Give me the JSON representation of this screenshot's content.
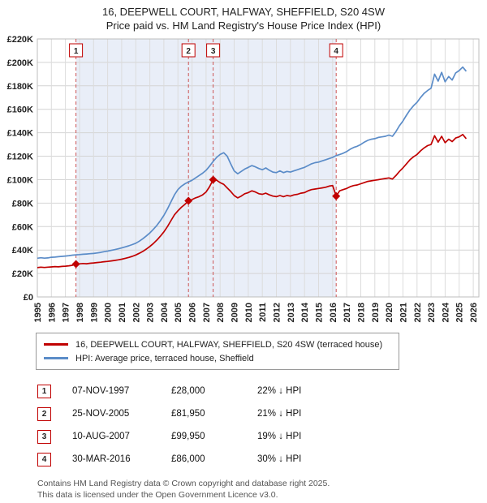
{
  "header": {
    "title": "16, DEEPWELL COURT, HALFWAY, SHEFFIELD, S20 4SW",
    "subtitle": "Price paid vs. HM Land Registry's House Price Index (HPI)"
  },
  "chart_data": {
    "type": "line",
    "title": "16, DEEPWELL COURT, HALFWAY, SHEFFIELD, S20 4SW",
    "subtitle": "Price paid vs. HM Land Registry's House Price Index (HPI)",
    "xlabel": "",
    "ylabel": "",
    "ylim": [
      0,
      220000
    ],
    "y_tick_step": 20000,
    "y_tick_labels": [
      "£0",
      "£20K",
      "£40K",
      "£60K",
      "£80K",
      "£100K",
      "£120K",
      "£140K",
      "£160K",
      "£180K",
      "£200K",
      "£220K"
    ],
    "x_ticks": [
      1995,
      1996,
      1997,
      1998,
      1999,
      2000,
      2001,
      2002,
      2003,
      2004,
      2005,
      2006,
      2007,
      2008,
      2009,
      2010,
      2011,
      2012,
      2013,
      2014,
      2015,
      2016,
      2017,
      2018,
      2019,
      2020,
      2021,
      2022,
      2023,
      2024,
      2025,
      2026
    ],
    "x_start": 1995,
    "x_step": 0.25,
    "grid": true,
    "legend_position": "bottom",
    "y_unit": "GBP_thousands",
    "ownership_shading": {
      "from": 1997.75,
      "to": 2016.25,
      "color": "#e9eef8"
    },
    "series": [
      {
        "name": "16, DEEPWELL COURT, HALFWAY, SHEFFIELD, S20 4SW (terraced house)",
        "color": "#c00000",
        "values": [
          25,
          25.4,
          25.1,
          25.4,
          25.6,
          25.9,
          25.7,
          26,
          26.2,
          26.6,
          27,
          28,
          28.2,
          28.5,
          28.3,
          28.7,
          29,
          29.3,
          29.6,
          30,
          30.3,
          30.7,
          31.1,
          31.6,
          32.2,
          32.9,
          33.7,
          34.6,
          35.8,
          37.2,
          38.8,
          40.8,
          43,
          45.5,
          48.5,
          51.8,
          55.5,
          60,
          65,
          70,
          73.5,
          76.5,
          79,
          81.95,
          83,
          84.5,
          85.5,
          87,
          89.5,
          94,
          99.95,
          99.5,
          97.5,
          96,
          93,
          90,
          86.5,
          84.5,
          86,
          88,
          89,
          90.5,
          89.5,
          88,
          87.5,
          88.5,
          87,
          86,
          85.5,
          86.5,
          85.5,
          86.5,
          86,
          87,
          87.5,
          88.5,
          89,
          90.5,
          91.5,
          92,
          92.5,
          93,
          93.5,
          94.5,
          95,
          86,
          90.5,
          91.5,
          92.5,
          94,
          95,
          95.5,
          96.5,
          97.5,
          98.5,
          99,
          99.5,
          100,
          100.5,
          101,
          101.5,
          100.5,
          103.5,
          107,
          110,
          113.5,
          117,
          119.5,
          121.5,
          124.5,
          127,
          129,
          130,
          137.5,
          132,
          137,
          131.5,
          134.5,
          132.5,
          135.5,
          136.5,
          138.5,
          135
        ]
      },
      {
        "name": "HPI: Average price, terraced house, Sheffield",
        "color": "#5b8cc8",
        "values": [
          33,
          33.4,
          33.1,
          33.3,
          33.8,
          34,
          34.3,
          34.6,
          34.9,
          35.2,
          35.6,
          35.9,
          36.1,
          36.4,
          36.6,
          36.9,
          37.1,
          37.5,
          38,
          38.6,
          39.1,
          39.7,
          40.3,
          41,
          41.8,
          42.7,
          43.6,
          44.6,
          45.8,
          47.5,
          49.6,
          52,
          54.6,
          57.6,
          61,
          65,
          69.5,
          75,
          81,
          87,
          91.5,
          94.5,
          96.5,
          98,
          99.5,
          101.5,
          103.5,
          105.5,
          108,
          111.5,
          115.5,
          119,
          121.5,
          123,
          120,
          113.5,
          107.5,
          105,
          107,
          109,
          110.5,
          112,
          111,
          109.5,
          108.5,
          110,
          108,
          106.5,
          106,
          107.5,
          106,
          107,
          106.5,
          107.5,
          108.5,
          109.5,
          110.5,
          112,
          113.5,
          114.5,
          115,
          116,
          117,
          118,
          119,
          120.5,
          121.5,
          122.5,
          124,
          126,
          127.5,
          128.5,
          130,
          132,
          133.5,
          134.5,
          135,
          136,
          136.5,
          137,
          138,
          137,
          141,
          146,
          150,
          155,
          159.5,
          163,
          166,
          170,
          173.5,
          176,
          178,
          190,
          184,
          191.5,
          183.5,
          188,
          185,
          191,
          193,
          196,
          192.5
        ]
      }
    ],
    "sale_markers": [
      {
        "label": "1",
        "x": 1997.75,
        "value": 28.0
      },
      {
        "label": "2",
        "x": 2005.75,
        "value": 81.95
      },
      {
        "label": "3",
        "x": 2007.5,
        "value": 99.95
      },
      {
        "label": "4",
        "x": 2016.25,
        "value": 86.0
      }
    ]
  },
  "legend": {
    "items": [
      {
        "label": "16, DEEPWELL COURT, HALFWAY, SHEFFIELD, S20 4SW (terraced house)",
        "color": "#c00000"
      },
      {
        "label": "HPI: Average price, terraced house, Sheffield",
        "color": "#5b8cc8"
      }
    ]
  },
  "transactions": [
    {
      "num": "1",
      "date": "07-NOV-1997",
      "price": "£28,000",
      "hpi_diff": "22% ↓ HPI"
    },
    {
      "num": "2",
      "date": "25-NOV-2005",
      "price": "£81,950",
      "hpi_diff": "21% ↓ HPI"
    },
    {
      "num": "3",
      "date": "10-AUG-2007",
      "price": "£99,950",
      "hpi_diff": "19% ↓ HPI"
    },
    {
      "num": "4",
      "date": "30-MAR-2016",
      "price": "£86,000",
      "hpi_diff": "30% ↓ HPI"
    }
  ],
  "footer": {
    "line1": "Contains HM Land Registry data © Crown copyright and database right 2025.",
    "line2": "This data is licensed under the Open Government Licence v3.0."
  }
}
